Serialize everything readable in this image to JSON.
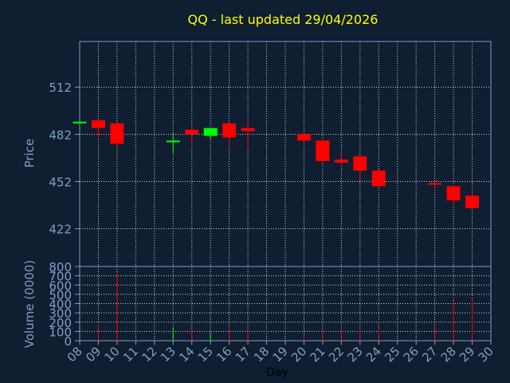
{
  "title": "QQ - last updated 29/04/2026",
  "colors": {
    "background": "#0f1e30",
    "title": "#ffff00",
    "axis_text": "#7f9fc7",
    "xlabel": "#000000",
    "frame": "#7f9fc7",
    "grid": "#d0d8e8",
    "up": "#00ff00",
    "down": "#ff0000"
  },
  "chart_data": [
    {
      "type": "candlestick",
      "title": "QQ - last updated 29/04/2026",
      "ylabel": "Price",
      "ylim": [
        398,
        541
      ],
      "yticks": [
        422,
        452,
        482,
        512
      ],
      "xlim": [
        8,
        30
      ],
      "xticks": [
        "08",
        "09",
        "10",
        "11",
        "12",
        "13",
        "14",
        "15",
        "16",
        "17",
        "18",
        "19",
        "20",
        "21",
        "22",
        "23",
        "24",
        "25",
        "26",
        "27",
        "28",
        "29",
        "30"
      ],
      "grid": true,
      "candles": [
        {
          "day": 8,
          "open": 489,
          "high": 490,
          "low": 488,
          "close": 490
        },
        {
          "day": 9,
          "open": 491,
          "high": 492,
          "low": 479,
          "close": 486
        },
        {
          "day": 10,
          "open": 489,
          "high": 490,
          "low": 474,
          "close": 476
        },
        {
          "day": 13,
          "open": 478,
          "high": 483,
          "low": 470,
          "close": 478
        },
        {
          "day": 14,
          "open": 485,
          "high": 487,
          "low": 475,
          "close": 482
        },
        {
          "day": 15,
          "open": 481,
          "high": 486,
          "low": 479,
          "close": 486
        },
        {
          "day": 16,
          "open": 489,
          "high": 490,
          "low": 475,
          "close": 480
        },
        {
          "day": 17,
          "open": 486,
          "high": 491,
          "low": 475,
          "close": 484
        },
        {
          "day": 20,
          "open": 482,
          "high": 484,
          "low": 475,
          "close": 478
        },
        {
          "day": 21,
          "open": 478,
          "high": 479,
          "low": 464,
          "close": 465
        },
        {
          "day": 22,
          "open": 466,
          "high": 470,
          "low": 463,
          "close": 464
        },
        {
          "day": 23,
          "open": 468,
          "high": 469,
          "low": 453,
          "close": 459
        },
        {
          "day": 24,
          "open": 459,
          "high": 460,
          "low": 448,
          "close": 449
        },
        {
          "day": 27,
          "open": 451,
          "high": 452,
          "low": 448,
          "close": 450
        },
        {
          "day": 28,
          "open": 449,
          "high": 450,
          "low": 437,
          "close": 440
        },
        {
          "day": 29,
          "open": 443,
          "high": 447,
          "low": 435,
          "close": 435
        }
      ]
    },
    {
      "type": "bar",
      "xlabel": "Day",
      "ylabel": "Volume (0000)",
      "ylim": [
        0,
        800
      ],
      "yticks": [
        0,
        100,
        200,
        300,
        400,
        500,
        600,
        700,
        800
      ],
      "xlim": [
        8,
        30
      ],
      "grid": true,
      "volumes": [
        {
          "day": 8,
          "value": 0,
          "direction": "up"
        },
        {
          "day": 9,
          "value": 180,
          "direction": "down"
        },
        {
          "day": 10,
          "value": 730,
          "direction": "down"
        },
        {
          "day": 13,
          "value": 140,
          "direction": "up"
        },
        {
          "day": 14,
          "value": 100,
          "direction": "down"
        },
        {
          "day": 15,
          "value": 90,
          "direction": "up"
        },
        {
          "day": 16,
          "value": 130,
          "direction": "down"
        },
        {
          "day": 17,
          "value": 100,
          "direction": "down"
        },
        {
          "day": 20,
          "value": 70,
          "direction": "down"
        },
        {
          "day": 21,
          "value": 110,
          "direction": "down"
        },
        {
          "day": 22,
          "value": 110,
          "direction": "down"
        },
        {
          "day": 23,
          "value": 110,
          "direction": "down"
        },
        {
          "day": 24,
          "value": 150,
          "direction": "down"
        },
        {
          "day": 27,
          "value": 170,
          "direction": "down"
        },
        {
          "day": 28,
          "value": 430,
          "direction": "down"
        },
        {
          "day": 29,
          "value": 460,
          "direction": "down"
        }
      ]
    }
  ]
}
